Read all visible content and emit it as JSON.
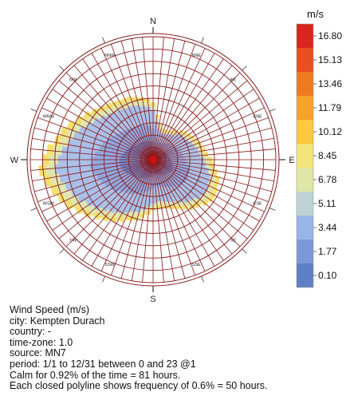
{
  "chart_data": {
    "type": "wind-rose",
    "directions": [
      "N",
      "NNE",
      "NE",
      "ENE",
      "E",
      "ESE",
      "SE",
      "SSE",
      "S",
      "SSW",
      "SW",
      "WSW",
      "W",
      "WNW",
      "NW",
      "NNW"
    ],
    "legend": {
      "unit": "m/s",
      "ticks": [
        "16.80",
        "15.13",
        "13.46",
        "11.79",
        "10.12",
        "8.45",
        "6.78",
        "5.11",
        "3.44",
        "1.77",
        "0.10"
      ],
      "colors": [
        "#d9261c",
        "#e8501f",
        "#ef7b21",
        "#f6a22b",
        "#fac93f",
        "#f3e47a",
        "#dfe6a6",
        "#bdd3d6",
        "#98b5e8",
        "#7b98d8",
        "#5f7fc4"
      ]
    },
    "frequency_per_ring_percent": 0.6,
    "rings": 10,
    "sectors_per_direction": 4,
    "grid": true,
    "extent_inner_calm_speed_percent": [
      [
        0.3,
        0.2,
        0.2,
        0.2,
        0.3,
        0.3,
        0.4,
        0.4,
        0.5,
        0.6,
        0.8,
        1.0,
        1.1,
        1.2,
        1.0,
        0.9
      ],
      [
        0.8,
        0.9,
        1.1,
        1.3,
        1.5,
        1.6,
        1.8,
        1.9,
        2.3,
        2.8,
        3.4,
        3.8,
        3.6,
        3.4,
        3.0,
        2.2
      ],
      [
        2.0,
        2.3,
        2.6,
        2.7,
        2.8,
        3.0,
        3.3,
        3.6,
        4.3,
        5.0,
        5.6,
        5.5,
        5.2,
        5.0,
        4.6,
        4.0
      ]
    ],
    "sector_extent_percent": [
      2.8,
      2.2,
      1.8,
      1.6,
      1.6,
      1.6,
      1.7,
      1.8,
      2.0,
      2.1,
      2.2,
      2.3,
      2.4,
      2.5,
      2.6,
      2.7,
      2.9,
      3.0,
      3.2,
      3.4,
      3.4,
      3.5,
      3.5,
      3.4,
      3.2,
      3.1,
      2.9,
      2.7,
      2.6,
      2.5,
      2.4,
      2.4,
      2.5,
      2.7,
      2.9,
      3.1,
      3.2,
      3.4,
      3.6,
      3.8,
      4.0,
      4.3,
      4.5,
      4.8,
      5.0,
      5.2,
      5.4,
      5.6,
      5.4,
      5.2,
      4.9,
      4.7,
      4.5,
      4.2,
      4.0,
      3.8,
      3.6,
      3.5,
      3.4,
      3.3,
      3.3,
      3.2,
      3.1,
      3.0
    ],
    "summary": {
      "title": "Wind Speed (m/s)",
      "city": "city: Kempten Durach",
      "country": "country: -",
      "timezone": "time-zone: 1.0",
      "source": "source: MN7",
      "period": "period: 1/1 to 12/31 between 0 and 23 @1",
      "calm": "Calm for 0.92% of the time = 81 hours.",
      "polyline": "Each closed polyline shows frequency of 0.6% = 50 hours."
    }
  }
}
